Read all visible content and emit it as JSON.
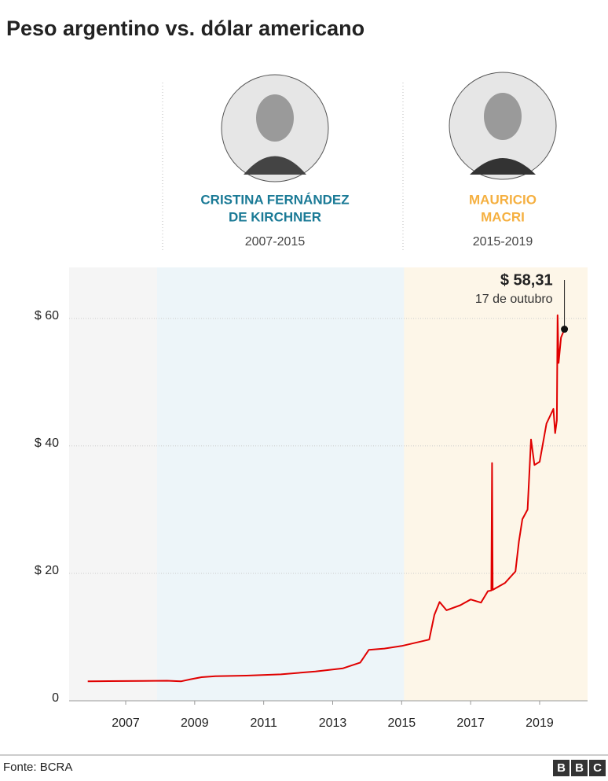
{
  "chart_data": {
    "type": "line",
    "title": "Peso argentino vs. dólar americano",
    "source": "Fonte: BCRA",
    "logo": [
      "B",
      "B",
      "C"
    ],
    "color": "#e00000",
    "x": [
      2005.9,
      2006.5,
      2007.5,
      2008.2,
      2008.6,
      2008.9,
      2009.2,
      2009.6,
      2010.5,
      2011.5,
      2012.5,
      2013.3,
      2013.8,
      2014.05,
      2014.5,
      2015.0,
      2015.8,
      2015.95,
      2016.1,
      2016.3,
      2016.7,
      2017.0,
      2017.3,
      2017.5,
      2017.6,
      2017.62,
      2017.64,
      2018.0,
      2018.3,
      2018.4,
      2018.5,
      2018.65,
      2018.75,
      2018.85,
      2019.0,
      2019.2,
      2019.4,
      2019.45,
      2019.5,
      2019.52,
      2019.55,
      2019.62,
      2019.72
    ],
    "values": [
      3.05,
      3.08,
      3.12,
      3.15,
      3.05,
      3.4,
      3.7,
      3.85,
      3.95,
      4.15,
      4.6,
      5.1,
      6.0,
      8.0,
      8.2,
      8.6,
      9.6,
      13.5,
      15.5,
      14.2,
      15.0,
      15.9,
      15.4,
      17.2,
      17.3,
      37.3,
      17.4,
      18.5,
      20.3,
      25,
      28.5,
      30,
      41,
      37,
      37.5,
      43.5,
      45.8,
      42,
      44,
      60.5,
      53,
      57,
      58.31
    ],
    "annotation": {
      "x": 2019.72,
      "value": 58.31,
      "label": "$ 58,31",
      "text": "17 de outubro"
    },
    "periods": [
      {
        "name": [
          "CRISTINA FERNÁNDEZ",
          "DE KIRCHNER"
        ],
        "years": "2007-2015",
        "color": "#1a7a96",
        "shade": "#edf5f9",
        "start": 2007.91,
        "end": 2015.07
      },
      {
        "name": [
          "MAURICIO",
          "MACRI"
        ],
        "years": "2015-2019",
        "color": "#f5b041",
        "shade": "#fdf6e8",
        "start": 2015.07,
        "end": 2020.39
      }
    ],
    "xlim": [
      2005.36,
      2020.39
    ],
    "xticks": [
      2007,
      2009,
      2011,
      2013,
      2015,
      2017,
      2019
    ],
    "ylim": [
      0,
      68
    ],
    "yticks": [
      0,
      {
        "value": 20,
        "label": "$ 20"
      },
      {
        "value": 40,
        "label": "$ 40"
      },
      {
        "value": 60,
        "label": "$ 60"
      }
    ],
    "grid": true
  }
}
